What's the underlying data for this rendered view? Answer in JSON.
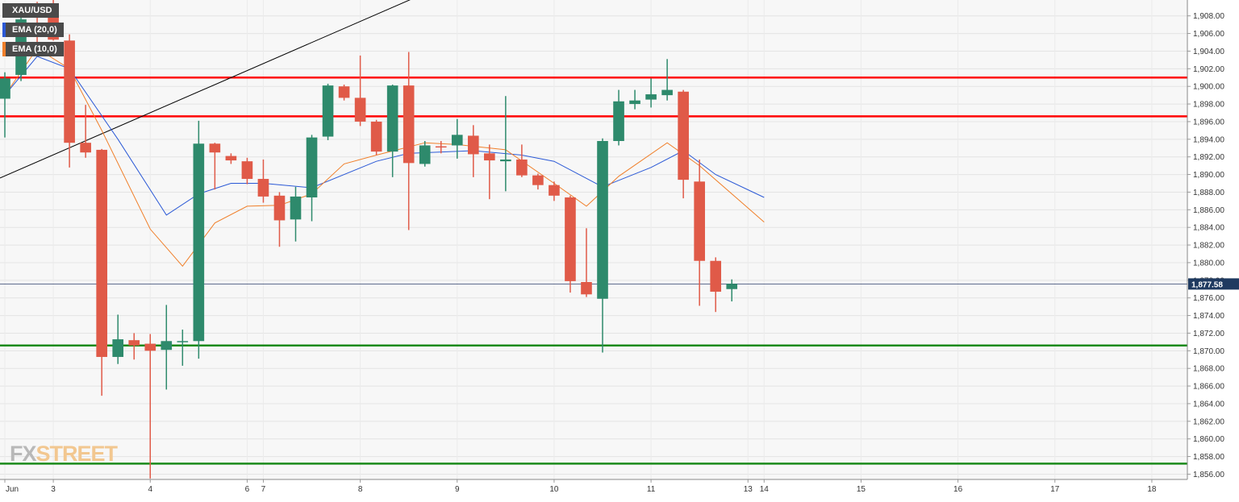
{
  "legend": {
    "symbol": "XAU/USD",
    "ema20": "EMA (20,0)",
    "ema10": "EMA (10,0)"
  },
  "watermark": {
    "fx": "FX",
    "street": "STREET"
  },
  "colors": {
    "bull": "#2e8a6c",
    "bear": "#e05a48",
    "resistance": "#ff0000",
    "support": "#1a8a1a",
    "ema20": "#2b59d6",
    "ema10": "#f07f2a",
    "trendline": "#000000",
    "price_line": "#2c3e6b"
  },
  "chart_data": {
    "type": "candlestick",
    "title": "",
    "xlabel": "",
    "ylabel": "",
    "ylim": [
      1855.4,
      1909.8
    ],
    "y_ticks": [
      "1,856.00",
      "1,858.00",
      "1,860.00",
      "1,862.00",
      "1,864.00",
      "1,866.00",
      "1,868.00",
      "1,870.00",
      "1,872.00",
      "1,874.00",
      "1,876.00",
      "1,878.00",
      "1,880.00",
      "1,882.00",
      "1,884.00",
      "1,886.00",
      "1,888.00",
      "1,890.00",
      "1,892.00",
      "1,894.00",
      "1,896.00",
      "1,898.00",
      "1,900.00",
      "1,902.00",
      "1,904.00",
      "1,906.00",
      "1,908.00"
    ],
    "x_labels": [
      {
        "label": "Jun",
        "x": 0
      },
      {
        "label": "3",
        "x": 3
      },
      {
        "label": "4",
        "x": 9
      },
      {
        "label": "6",
        "x": 15
      },
      {
        "label": "7",
        "x": 16
      },
      {
        "label": "8",
        "x": 22
      },
      {
        "label": "9",
        "x": 28
      },
      {
        "label": "10",
        "x": 34
      },
      {
        "label": "11",
        "x": 40
      },
      {
        "label": "13",
        "x": 46
      },
      {
        "label": "14",
        "x": 47
      },
      {
        "label": "15",
        "x": 53
      },
      {
        "label": "16",
        "x": 59
      },
      {
        "label": "17",
        "x": 65
      },
      {
        "label": "18",
        "x": 71
      }
    ],
    "x_range": [
      -0.3,
      73.2
    ],
    "last_price": "1,877.58",
    "last_price_value": 1877.58,
    "candles": [
      {
        "x": 0,
        "o": 1898.6,
        "h": 1901.6,
        "l": 1894.2,
        "c": 1900.9
      },
      {
        "x": 1,
        "o": 1901.3,
        "h": 1908.0,
        "l": 1900.6,
        "c": 1907.6
      },
      {
        "x": 2,
        "o": 1907.0,
        "h": 1909.6,
        "l": 1904.7,
        "c": 1905.6
      },
      {
        "x": 3,
        "o": 1908.2,
        "h": 1909.9,
        "l": 1905.2,
        "c": 1905.3
      },
      {
        "x": 4,
        "o": 1905.2,
        "h": 1905.9,
        "l": 1890.8,
        "c": 1893.6
      },
      {
        "x": 5,
        "o": 1893.6,
        "h": 1897.9,
        "l": 1891.9,
        "c": 1892.5
      },
      {
        "x": 6,
        "o": 1892.8,
        "h": 1892.9,
        "l": 1864.9,
        "c": 1869.3
      },
      {
        "x": 7,
        "o": 1869.3,
        "h": 1874.1,
        "l": 1868.5,
        "c": 1871.3
      },
      {
        "x": 8,
        "o": 1871.2,
        "h": 1872.0,
        "l": 1869.0,
        "c": 1870.6
      },
      {
        "x": 9,
        "o": 1870.8,
        "h": 1871.9,
        "l": 1855.5,
        "c": 1870.0
      },
      {
        "x": 10,
        "o": 1870.1,
        "h": 1875.2,
        "l": 1865.6,
        "c": 1871.1
      },
      {
        "x": 11,
        "o": 1871.0,
        "h": 1872.4,
        "l": 1868.3,
        "c": 1871.1
      },
      {
        "x": 12,
        "o": 1871.1,
        "h": 1896.1,
        "l": 1869.1,
        "c": 1893.5
      },
      {
        "x": 13,
        "o": 1893.5,
        "h": 1893.6,
        "l": 1888.3,
        "c": 1892.5
      },
      {
        "x": 14,
        "o": 1892.1,
        "h": 1892.4,
        "l": 1891.2,
        "c": 1891.6
      },
      {
        "x": 15,
        "o": 1891.5,
        "h": 1891.9,
        "l": 1888.9,
        "c": 1889.5
      },
      {
        "x": 16,
        "o": 1889.5,
        "h": 1891.7,
        "l": 1886.8,
        "c": 1887.5
      },
      {
        "x": 17,
        "o": 1887.6,
        "h": 1888.0,
        "l": 1881.8,
        "c": 1884.8
      },
      {
        "x": 18,
        "o": 1884.9,
        "h": 1888.6,
        "l": 1882.4,
        "c": 1887.5
      },
      {
        "x": 19,
        "o": 1887.4,
        "h": 1894.5,
        "l": 1884.7,
        "c": 1894.2
      },
      {
        "x": 20,
        "o": 1894.3,
        "h": 1900.3,
        "l": 1893.9,
        "c": 1900.1
      },
      {
        "x": 21,
        "o": 1900.0,
        "h": 1900.2,
        "l": 1898.4,
        "c": 1898.7
      },
      {
        "x": 22,
        "o": 1898.7,
        "h": 1903.5,
        "l": 1895.5,
        "c": 1896.0
      },
      {
        "x": 23,
        "o": 1896.0,
        "h": 1896.2,
        "l": 1892.2,
        "c": 1892.6
      },
      {
        "x": 24,
        "o": 1892.6,
        "h": 1900.2,
        "l": 1889.7,
        "c": 1900.1
      },
      {
        "x": 25,
        "o": 1900.1,
        "h": 1903.9,
        "l": 1883.7,
        "c": 1891.3
      },
      {
        "x": 26,
        "o": 1891.2,
        "h": 1893.8,
        "l": 1890.9,
        "c": 1893.3
      },
      {
        "x": 27,
        "o": 1893.2,
        "h": 1893.8,
        "l": 1892.4,
        "c": 1893.1
      },
      {
        "x": 28,
        "o": 1893.3,
        "h": 1896.3,
        "l": 1891.8,
        "c": 1894.5
      },
      {
        "x": 29,
        "o": 1894.4,
        "h": 1895.6,
        "l": 1889.7,
        "c": 1892.3
      },
      {
        "x": 30,
        "o": 1892.4,
        "h": 1893.4,
        "l": 1887.2,
        "c": 1891.6
      },
      {
        "x": 31,
        "o": 1891.5,
        "h": 1898.9,
        "l": 1888.1,
        "c": 1891.7
      },
      {
        "x": 32,
        "o": 1891.7,
        "h": 1893.4,
        "l": 1889.7,
        "c": 1889.9
      },
      {
        "x": 33,
        "o": 1889.9,
        "h": 1890.1,
        "l": 1888.3,
        "c": 1888.8
      },
      {
        "x": 34,
        "o": 1888.8,
        "h": 1889.2,
        "l": 1887.0,
        "c": 1887.6
      },
      {
        "x": 35,
        "o": 1887.4,
        "h": 1887.6,
        "l": 1876.6,
        "c": 1877.9
      },
      {
        "x": 36,
        "o": 1877.8,
        "h": 1883.9,
        "l": 1876.1,
        "c": 1876.4
      },
      {
        "x": 37,
        "o": 1875.9,
        "h": 1894.1,
        "l": 1869.8,
        "c": 1893.8
      },
      {
        "x": 38,
        "o": 1893.8,
        "h": 1899.6,
        "l": 1893.3,
        "c": 1898.3
      },
      {
        "x": 39,
        "o": 1898.0,
        "h": 1899.6,
        "l": 1897.4,
        "c": 1898.4
      },
      {
        "x": 40,
        "o": 1898.5,
        "h": 1900.9,
        "l": 1897.6,
        "c": 1899.1
      },
      {
        "x": 41,
        "o": 1899.0,
        "h": 1903.1,
        "l": 1898.4,
        "c": 1899.6
      },
      {
        "x": 42,
        "o": 1899.4,
        "h": 1899.6,
        "l": 1887.3,
        "c": 1889.4
      },
      {
        "x": 43,
        "o": 1889.2,
        "h": 1891.7,
        "l": 1875.1,
        "c": 1880.2
      },
      {
        "x": 44,
        "o": 1880.2,
        "h": 1880.6,
        "l": 1874.4,
        "c": 1876.7
      },
      {
        "x": 45,
        "o": 1877.0,
        "h": 1878.1,
        "l": 1875.6,
        "c": 1877.6
      }
    ],
    "ema20": [
      {
        "x": 0,
        "y": 1899.0
      },
      {
        "x": 2,
        "y": 1903.4
      },
      {
        "x": 4,
        "y": 1902.0
      },
      {
        "x": 7,
        "y": 1894.0
      },
      {
        "x": 10,
        "y": 1885.4
      },
      {
        "x": 12,
        "y": 1887.8
      },
      {
        "x": 14,
        "y": 1889.0
      },
      {
        "x": 16,
        "y": 1889.0
      },
      {
        "x": 19,
        "y": 1888.5
      },
      {
        "x": 23,
        "y": 1891.5
      },
      {
        "x": 25,
        "y": 1892.4
      },
      {
        "x": 29,
        "y": 1892.7
      },
      {
        "x": 32,
        "y": 1892.2
      },
      {
        "x": 34,
        "y": 1891.5
      },
      {
        "x": 37,
        "y": 1888.6
      },
      {
        "x": 40,
        "y": 1890.8
      },
      {
        "x": 42,
        "y": 1892.7
      },
      {
        "x": 44,
        "y": 1890.0
      },
      {
        "x": 47,
        "y": 1887.4
      }
    ],
    "ema10": [
      {
        "x": 0,
        "y": 1899.0
      },
      {
        "x": 2,
        "y": 1904.3
      },
      {
        "x": 4,
        "y": 1902.0
      },
      {
        "x": 6,
        "y": 1895.0
      },
      {
        "x": 9,
        "y": 1883.8
      },
      {
        "x": 11,
        "y": 1879.6
      },
      {
        "x": 13,
        "y": 1884.5
      },
      {
        "x": 15,
        "y": 1886.4
      },
      {
        "x": 17,
        "y": 1886.5
      },
      {
        "x": 19,
        "y": 1887.8
      },
      {
        "x": 21,
        "y": 1891.2
      },
      {
        "x": 23,
        "y": 1892.2
      },
      {
        "x": 26,
        "y": 1893.6
      },
      {
        "x": 28,
        "y": 1893.4
      },
      {
        "x": 31,
        "y": 1892.8
      },
      {
        "x": 34,
        "y": 1889.0
      },
      {
        "x": 36,
        "y": 1886.4
      },
      {
        "x": 38,
        "y": 1889.8
      },
      {
        "x": 41,
        "y": 1893.6
      },
      {
        "x": 43,
        "y": 1891.0
      },
      {
        "x": 47,
        "y": 1884.6
      }
    ],
    "trendline": {
      "from": {
        "x": -0.3,
        "y": 1889.6
      },
      "to": {
        "x": 25.3,
        "y": 1910.0
      }
    },
    "resistance_levels": [
      1901.0,
      1896.6
    ],
    "support_levels": [
      1870.6,
      1857.2
    ]
  }
}
